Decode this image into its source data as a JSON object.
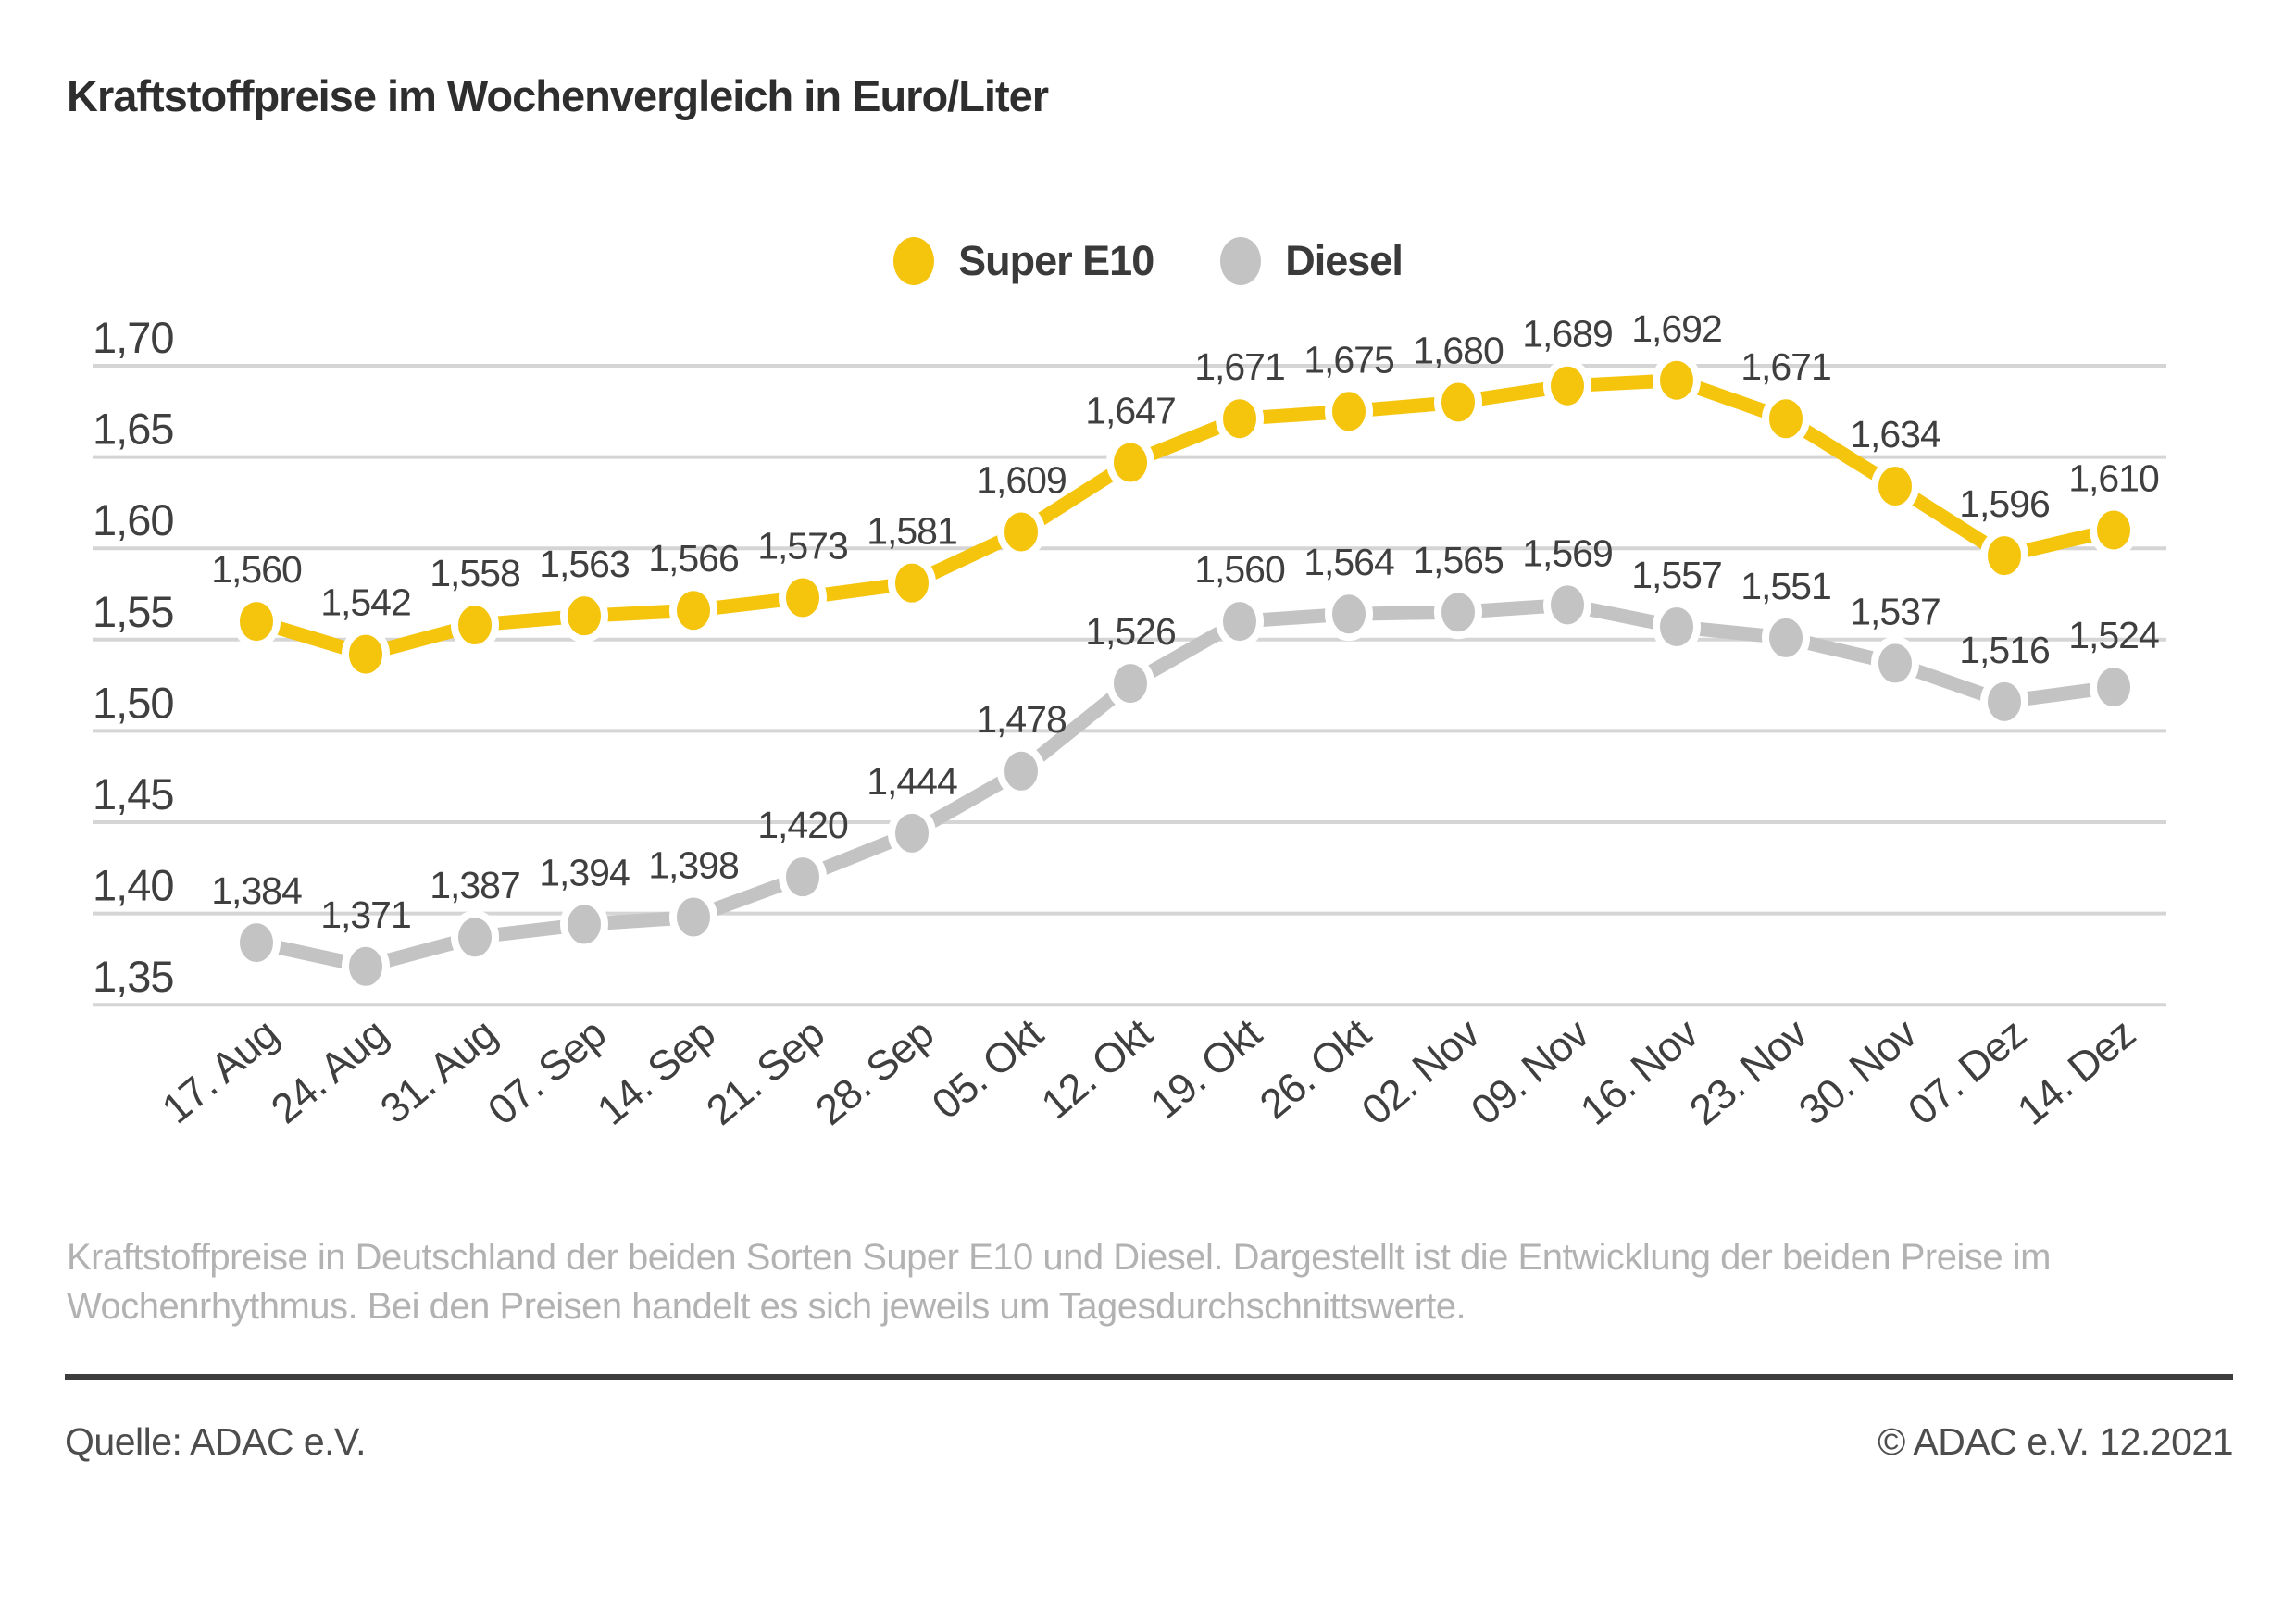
{
  "header": {
    "title": "Kraftstoffpreise im Wochenvergleich in Euro/Liter"
  },
  "chart_data": {
    "type": "line",
    "title": "Kraftstoffpreise im Wochenvergleich in Euro/Liter",
    "categories": [
      "17. Aug",
      "24. Aug",
      "31. Aug",
      "07. Sep",
      "14. Sep",
      "21. Sep",
      "28. Sep",
      "05. Okt",
      "12. Okt",
      "19. Okt",
      "26. Okt",
      "02. Nov",
      "09. Nov",
      "16. Nov",
      "23. Nov",
      "30. Nov",
      "07. Dez",
      "14. Dez"
    ],
    "series": [
      {
        "name": "Super E10",
        "color": "#f5c40c",
        "values": [
          1.56,
          1.542,
          1.558,
          1.563,
          1.566,
          1.573,
          1.581,
          1.609,
          1.647,
          1.671,
          1.675,
          1.68,
          1.689,
          1.692,
          1.671,
          1.634,
          1.596,
          1.61
        ]
      },
      {
        "name": "Diesel",
        "color": "#c3c3c3",
        "values": [
          1.384,
          1.371,
          1.387,
          1.394,
          1.398,
          1.42,
          1.444,
          1.478,
          1.526,
          1.56,
          1.564,
          1.565,
          1.569,
          1.557,
          1.551,
          1.537,
          1.516,
          1.524
        ]
      }
    ],
    "xlabel": "",
    "ylabel": "",
    "ylim": [
      1.35,
      1.7
    ],
    "ytick_step": 0.05,
    "ytick_labels": [
      "1,70",
      "1,65",
      "1,60",
      "1,55",
      "1,50",
      "1,45",
      "1,40",
      "1,35"
    ],
    "grid": true,
    "legend_position": "top-center",
    "decimal_separator": ","
  },
  "description": {
    "line1": "Kraftstoffpreise in Deutschland der beiden Sorten Super E10 und Diesel. Dargestellt ist die Entwicklung der beiden Preise im",
    "line2": "Wochenrhythmus. Bei den Preisen handelt es sich jeweils um Tagesdurchschnittswerte."
  },
  "footer": {
    "source": "Quelle: ADAC e.V.",
    "copyright": "© ADAC e.V. 12.2021"
  },
  "colors": {
    "super_e10": "#f5c40c",
    "diesel": "#c3c3c3",
    "gridline": "#d5d5d5",
    "text_dark": "#3f3f3f",
    "description_text": "#b2b2b2",
    "divider": "#3d3d3d"
  }
}
